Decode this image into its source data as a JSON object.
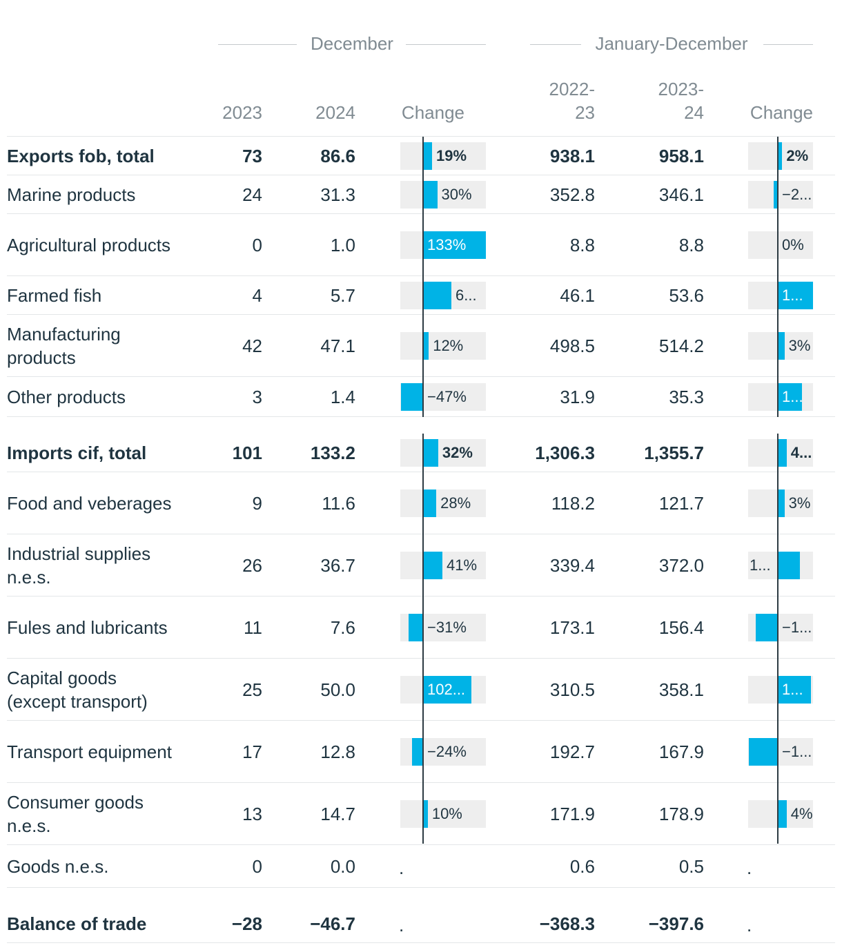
{
  "headers": {
    "group_december": "December",
    "group_jan_dec": "January-December",
    "col_2023": "2023",
    "col_2024": "2024",
    "col_change": "Change",
    "col_2022_23_a": "2022-",
    "col_2022_23_b": "23",
    "col_2023_24_a": "2023-",
    "col_2023_24_b": "24",
    "col_change2": "Change"
  },
  "colors": {
    "bar": "#00b3e6",
    "bar_bg": "#eeeeee",
    "axis": "#2c3a42",
    "text": "#1f3440",
    "muted": "#808b92"
  },
  "rows": [
    {
      "label": "Exports fob, total",
      "bold": true,
      "v2023": "73",
      "v2024": "86.6",
      "chg": 19,
      "chg_label": "19%",
      "v2223": "938.1",
      "v2324": "958.1",
      "chg2": 2,
      "chg2_label": "2%"
    },
    {
      "label": "Marine products",
      "bold": false,
      "v2023": "24",
      "v2024": "31.3",
      "chg": 30,
      "chg_label": "30%",
      "v2223": "352.8",
      "v2324": "346.1",
      "chg2": -2,
      "chg2_label": "−2..."
    },
    {
      "label": "Agricultural products",
      "bold": false,
      "v2023": "0",
      "v2024": "1.0",
      "chg": 133,
      "chg_label": "133%",
      "v2223": "8.8",
      "v2324": "8.8",
      "chg2": 0,
      "chg2_label": "0%"
    },
    {
      "label": "Farmed fish",
      "bold": false,
      "v2023": "4",
      "v2024": "5.7",
      "chg": 60,
      "chg_label": "6...",
      "v2223": "46.1",
      "v2324": "53.6",
      "chg2": 16,
      "chg2_label": "1..."
    },
    {
      "label": "Manufacturing products",
      "bold": false,
      "v2023": "42",
      "v2024": "47.1",
      "chg": 12,
      "chg_label": "12%",
      "v2223": "498.5",
      "v2324": "514.2",
      "chg2": 3,
      "chg2_label": "3%"
    },
    {
      "label": "Other products",
      "bold": false,
      "v2023": "3",
      "v2024": "1.4",
      "chg": -47,
      "chg_label": "−47%",
      "v2223": "31.9",
      "v2324": "35.3",
      "chg2": 11,
      "chg2_label": "1..."
    },
    {
      "label": "Imports cif, total",
      "bold": true,
      "v2023": "101",
      "v2024": "133.2",
      "chg": 32,
      "chg_label": "32%",
      "v2223": "1,306.3",
      "v2324": "1,355.7",
      "chg2": 4,
      "chg2_label": "4..."
    },
    {
      "label": "Food and veberages",
      "bold": false,
      "v2023": "9",
      "v2024": "11.6",
      "chg": 28,
      "chg_label": "28%",
      "v2223": "118.2",
      "v2324": "121.7",
      "chg2": 3,
      "chg2_label": "3%"
    },
    {
      "label": "Industrial supplies n.e.s.",
      "bold": false,
      "v2023": "26",
      "v2024": "36.7",
      "chg": 41,
      "chg_label": "41%",
      "v2223": "339.4",
      "v2324": "372.0",
      "chg2": 10,
      "chg2_label": "1..."
    },
    {
      "label": "Fules and lubricants",
      "bold": false,
      "v2023": "11",
      "v2024": "7.6",
      "chg": -31,
      "chg_label": "−31%",
      "v2223": "173.1",
      "v2324": "156.4",
      "chg2": -10,
      "chg2_label": "−1..."
    },
    {
      "label": "Capital goods (except transport)",
      "bold": false,
      "v2023": "25",
      "v2024": "50.0",
      "chg": 102,
      "chg_label": "102...",
      "v2223": "310.5",
      "v2324": "358.1",
      "chg2": 15,
      "chg2_label": "1..."
    },
    {
      "label": "Transport equipment",
      "bold": false,
      "v2023": "17",
      "v2024": "12.8",
      "chg": -24,
      "chg_label": "−24%",
      "v2223": "192.7",
      "v2324": "167.9",
      "chg2": -13,
      "chg2_label": "−1..."
    },
    {
      "label": "Consumer goods n.e.s.",
      "bold": false,
      "v2023": "13",
      "v2024": "14.7",
      "chg": 10,
      "chg_label": "10%",
      "v2223": "171.9",
      "v2324": "178.9",
      "chg2": 4,
      "chg2_label": "4%"
    },
    {
      "label": "Goods n.e.s.",
      "bold": false,
      "v2023": "0",
      "v2024": "0.0",
      "chg": null,
      "chg_label": ".",
      "v2223": "0.6",
      "v2324": "0.5",
      "chg2": null,
      "chg2_label": "."
    },
    {
      "label": "Balance of trade",
      "bold": true,
      "v2023": "−28",
      "v2024": "−46.7",
      "chg": null,
      "chg_label": ".",
      "v2223": "−368.3",
      "v2324": "−397.6",
      "chg2": null,
      "chg2_label": "."
    }
  ]
}
